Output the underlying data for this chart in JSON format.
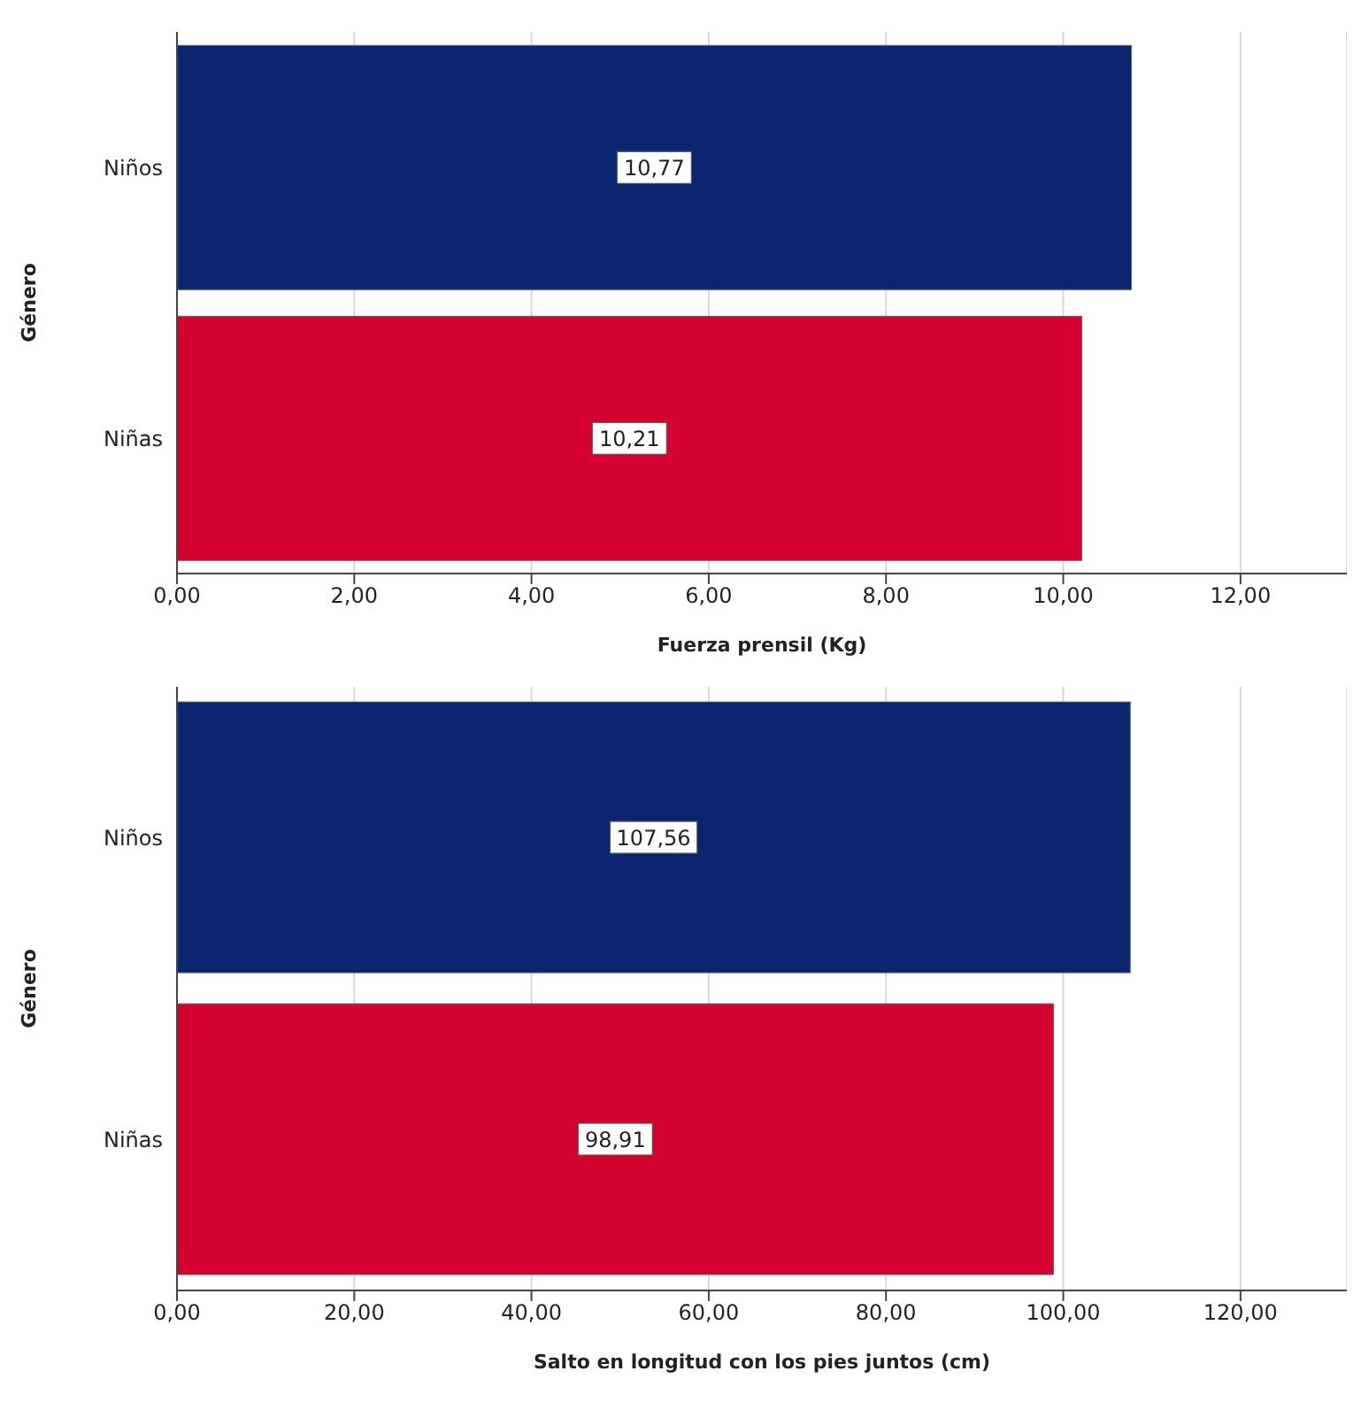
{
  "chart_data": [
    {
      "type": "bar",
      "orientation": "horizontal",
      "categories": [
        "Niños",
        "Niñas"
      ],
      "values": [
        10.77,
        10.21
      ],
      "colors": [
        "#0b2470",
        "#d6002e"
      ],
      "value_labels": [
        "10,77",
        "10,21"
      ],
      "xlabel": "Fuerza prensil (Kg)",
      "ylabel": "Género",
      "xlim": [
        0,
        13.2
      ],
      "xticks": [
        {
          "value": 0,
          "label": "0,00"
        },
        {
          "value": 2,
          "label": "2,00"
        },
        {
          "value": 4,
          "label": "4,00"
        },
        {
          "value": 6,
          "label": "6,00"
        },
        {
          "value": 8,
          "label": "8,00"
        },
        {
          "value": 10,
          "label": "10,00"
        },
        {
          "value": 12,
          "label": "12,00"
        }
      ],
      "grid": "x",
      "legend": false
    },
    {
      "type": "bar",
      "orientation": "horizontal",
      "categories": [
        "Niños",
        "Niñas"
      ],
      "values": [
        107.56,
        98.91
      ],
      "colors": [
        "#0b2470",
        "#d6002e"
      ],
      "value_labels": [
        "107,56",
        "98,91"
      ],
      "xlabel": "Salto en longitud con los pies juntos (cm)",
      "ylabel": "Género",
      "xlim": [
        0,
        132
      ],
      "xticks": [
        {
          "value": 0,
          "label": "0,00"
        },
        {
          "value": 20,
          "label": "20,00"
        },
        {
          "value": 40,
          "label": "40,00"
        },
        {
          "value": 60,
          "label": "60,00"
        },
        {
          "value": 80,
          "label": "80,00"
        },
        {
          "value": 100,
          "label": "100,00"
        },
        {
          "value": 120,
          "label": "120,00"
        }
      ],
      "grid": "x",
      "legend": false
    }
  ]
}
